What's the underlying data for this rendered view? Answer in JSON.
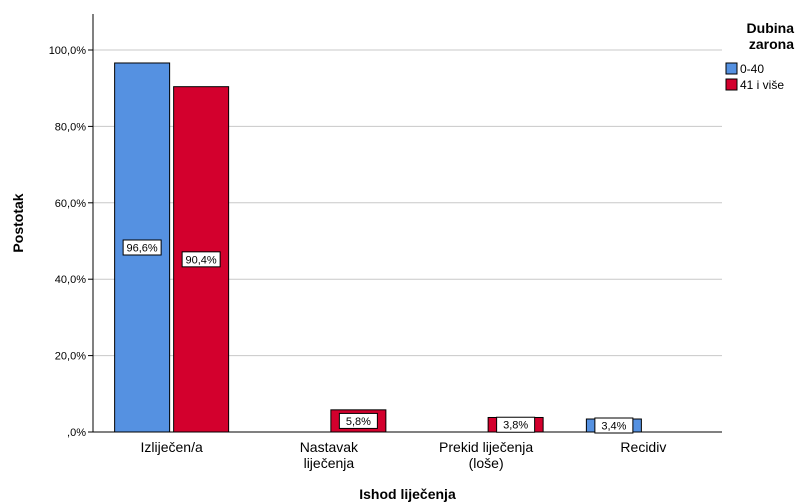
{
  "chart_data": {
    "type": "bar",
    "xlabel": "Ishod liječenja",
    "ylabel": "Postotak",
    "ylim": [
      0,
      100
    ],
    "y_ticks": [
      0,
      20,
      40,
      60,
      80,
      100
    ],
    "y_tick_labels": [
      ",0%",
      "20,0%",
      "40,0%",
      "60,0%",
      "80,0%",
      "100,0%"
    ],
    "grid": true,
    "categories": [
      [
        "Izliječen/a"
      ],
      [
        "Nastavak",
        "liječenja"
      ],
      [
        "Prekid liječenja",
        "(loše)"
      ],
      [
        "Recidiv"
      ]
    ],
    "series": [
      {
        "name": "0-40",
        "color": "#5591e1",
        "values": [
          96.6,
          0,
          0,
          3.4
        ],
        "labels": [
          "96,6%",
          "",
          "",
          "3,4%"
        ]
      },
      {
        "name": "41 i više",
        "color": "#d3002d",
        "values": [
          90.4,
          5.8,
          3.8,
          0
        ],
        "labels": [
          "90,4%",
          "5,8%",
          "3,8%",
          ""
        ]
      }
    ],
    "legend": {
      "title": [
        "Dubina",
        "zarona"
      ],
      "placement": "top-right"
    }
  }
}
